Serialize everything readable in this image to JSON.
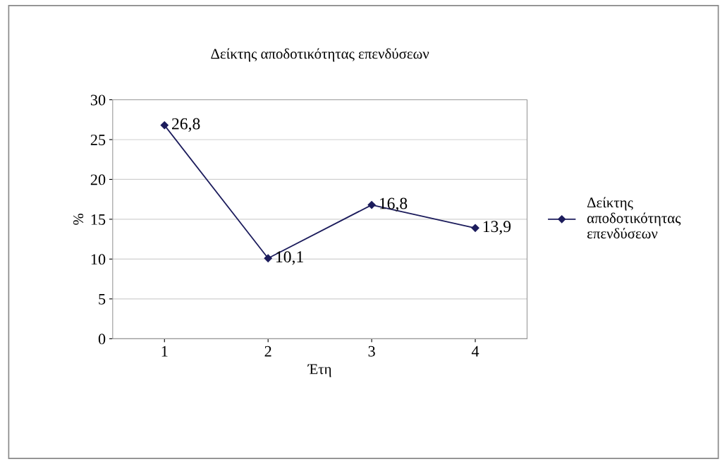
{
  "chart_data": {
    "type": "line",
    "title": "Δείκτης αποδοτικότητας επενδύσεων",
    "xlabel": "Έτη",
    "ylabel": "%",
    "categories": [
      "1",
      "2",
      "3",
      "4"
    ],
    "series": [
      {
        "name": "Δείκτης\nαποδοτικότητας\nεπενδύσεων",
        "color": "#1c1c5c",
        "values": [
          26.8,
          10.1,
          16.8,
          13.9
        ],
        "value_labels": [
          "26,8",
          "10,1",
          "16,8",
          "13,9"
        ]
      }
    ],
    "ylim": [
      0,
      30
    ],
    "yticks": [
      0,
      5,
      10,
      15,
      20,
      25,
      30
    ],
    "grid": "y",
    "legend": "right",
    "marker": "diamond",
    "line_style": "solid"
  }
}
